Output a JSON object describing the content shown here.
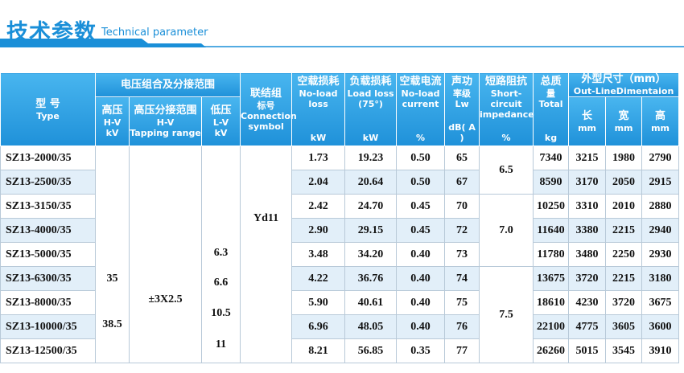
{
  "header": {
    "title": "技术参数",
    "subtitle": "Technical parameter"
  },
  "table": {
    "type_header": [
      "型 号",
      "Type"
    ],
    "voltage_group": {
      "title": "电压组合及分接范围",
      "columns": [
        [
          "高压",
          "H-V",
          "kV"
        ],
        [
          "高压分接范围",
          "H-V",
          "Tapping range"
        ],
        [
          "低压",
          "L-V",
          "kV"
        ]
      ]
    },
    "connection_header": [
      "联结组",
      "标号",
      "Connection",
      "symbol"
    ],
    "measure_headers": [
      {
        "lines": [
          "空载损耗",
          "No-load",
          "loss"
        ],
        "unit": "kW"
      },
      {
        "lines": [
          "负载损耗",
          "Load loss",
          "(75°)"
        ],
        "unit": "kW"
      },
      {
        "lines": [
          "空载电流",
          "No-load",
          "current"
        ],
        "unit": "%"
      },
      {
        "lines": [
          "声功",
          "率级",
          "Lw"
        ],
        "unit": "dB( A )"
      }
    ],
    "impedance_header": {
      "lines": [
        "短路阻抗",
        "Short-",
        "circuit",
        "impedance"
      ],
      "unit": "%"
    },
    "total_header": {
      "lines": [
        "总质",
        "量",
        "Total"
      ],
      "unit": "kg"
    },
    "dimension_group": {
      "title": "外型尺寸（mm）",
      "subtitle": "Out-LineDimentaion",
      "columns": [
        [
          "长",
          "mm"
        ],
        [
          "宽",
          "mm"
        ],
        [
          "高",
          "mm"
        ]
      ]
    },
    "hv_values": [
      "35",
      "38.5"
    ],
    "tapping": "±3X2.5",
    "lv_values": [
      "6.3",
      "6.6",
      "10.5",
      "11"
    ],
    "connection": "Yd11",
    "impedance_values": [
      "6.5",
      "7.0",
      "7.5"
    ],
    "rows": [
      [
        "SZ13-2000/35",
        "1.73",
        "19.23",
        "0.50",
        "65",
        "7340",
        "3215",
        "1980",
        "2790"
      ],
      [
        "SZ13-2500/35",
        "2.04",
        "20.64",
        "0.50",
        "67",
        "8590",
        "3170",
        "2050",
        "2915"
      ],
      [
        "SZ13-3150/35",
        "2.42",
        "24.70",
        "0.45",
        "70",
        "10250",
        "3310",
        "2010",
        "2880"
      ],
      [
        "SZ13-4000/35",
        "2.90",
        "29.15",
        "0.45",
        "72",
        "11640",
        "3380",
        "2215",
        "2940"
      ],
      [
        "SZ13-5000/35",
        "3.48",
        "34.20",
        "0.40",
        "73",
        "11780",
        "3480",
        "2250",
        "2930"
      ],
      [
        "SZ13-6300/35",
        "4.22",
        "36.76",
        "0.40",
        "74",
        "13675",
        "3720",
        "2215",
        "3180"
      ],
      [
        "SZ13-8000/35",
        "5.90",
        "40.61",
        "0.40",
        "75",
        "18610",
        "4230",
        "3720",
        "3675"
      ],
      [
        "SZ13-10000/35",
        "6.96",
        "48.05",
        "0.40",
        "76",
        "22100",
        "4775",
        "3605",
        "3600"
      ],
      [
        "SZ13-12500/35",
        "8.21",
        "56.85",
        "0.35",
        "77",
        "26260",
        "5015",
        "3545",
        "3910"
      ]
    ]
  }
}
